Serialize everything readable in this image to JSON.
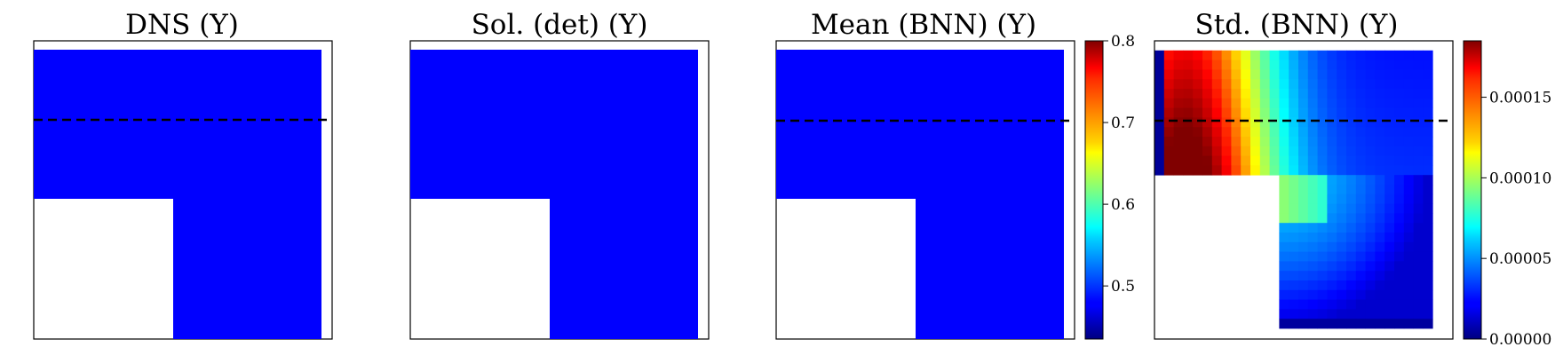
{
  "colors": {
    "blue": "#0000ff",
    "red": "#ff0000",
    "frame": "#000000",
    "dash": "#000000"
  },
  "chart_data": [
    {
      "type": "heatmap",
      "title": "DNS (Y)",
      "field": "uniform",
      "value": 0.44,
      "mask": "lower-left square",
      "dashed_line": true
    },
    {
      "type": "heatmap",
      "title": "Sol. (det) (Y)",
      "field": "uniform",
      "value": 0.44,
      "mask": "lower-left square",
      "dashed_line": false
    },
    {
      "type": "heatmap",
      "title": "Mean (BNN) (Y)",
      "field": "uniform",
      "value": 0.44,
      "mask": "lower-left square",
      "dashed_line": true,
      "colorbar": {
        "range": [
          0.435,
          0.8
        ],
        "ticks": [
          0.5,
          0.6,
          0.7,
          0.8
        ],
        "tick_labels": [
          "0.5",
          "0.6",
          "0.7",
          "0.8"
        ]
      }
    },
    {
      "type": "heatmap",
      "title": "Std. (BNN) (Y)",
      "field": "std",
      "mask": "lower-left square",
      "dashed_line": true,
      "colorbar": {
        "range": [
          0.0,
          0.000185
        ],
        "ticks": [
          0.0,
          5e-05,
          0.0001,
          0.00015
        ],
        "tick_labels": [
          "0.00000",
          "0.00005",
          "0.00010",
          "0.00015"
        ]
      }
    }
  ]
}
